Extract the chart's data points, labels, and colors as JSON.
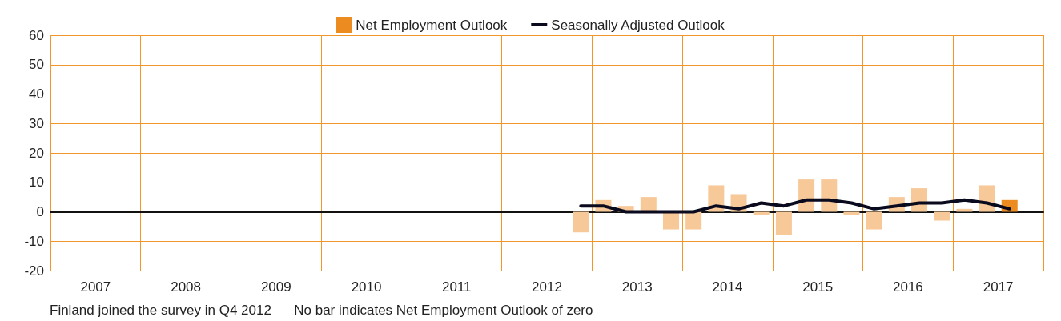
{
  "chart_data": {
    "type": "bar",
    "x": [
      2012.875,
      2013.125,
      2013.375,
      2013.625,
      2013.875,
      2014.125,
      2014.375,
      2014.625,
      2014.875,
      2015.125,
      2015.375,
      2015.625,
      2015.875,
      2016.125,
      2016.375,
      2016.625,
      2016.875,
      2017.125,
      2017.375,
      2017.625
    ],
    "series": [
      {
        "name": "Net Employment Outlook",
        "color": "#ec8b1f",
        "colors": [
          "#f7c999",
          "#f7c999",
          "#f7c999",
          "#f7c999",
          "#f7c999",
          "#f7c999",
          "#f7c999",
          "#f7c999",
          "#f7c999",
          "#f7c999",
          "#f7c999",
          "#f7c999",
          "#f7c999",
          "#f7c999",
          "#f7c999",
          "#f7c999",
          "#f7c999",
          "#f7c999",
          "#f7c999",
          "#ec8b1f"
        ],
        "values": [
          -7,
          4,
          2,
          5,
          -6,
          -6,
          9,
          6,
          -1,
          -8,
          11,
          11,
          -1,
          -6,
          5,
          8,
          -3,
          1,
          9,
          4
        ]
      },
      {
        "name": "Seasonally Adjusted Outlook",
        "type": "line",
        "color": "#0a0a1e",
        "values": [
          2,
          2,
          0,
          0,
          0,
          0,
          2,
          1,
          3,
          2,
          4,
          4,
          3,
          1,
          2,
          3,
          3,
          4,
          3,
          1
        ]
      }
    ],
    "xlim": [
      2007,
      2018
    ],
    "xticks": [
      {
        "value": 2007,
        "label": null
      },
      {
        "value": 2007.5,
        "label": "2007"
      },
      {
        "value": 2008,
        "label": null
      },
      {
        "value": 2008.5,
        "label": "2008"
      },
      {
        "value": 2009,
        "label": null
      },
      {
        "value": 2009.5,
        "label": "2009"
      },
      {
        "value": 2010,
        "label": null
      },
      {
        "value": 2010.5,
        "label": "2010"
      },
      {
        "value": 2011,
        "label": null
      },
      {
        "value": 2011.5,
        "label": "2011"
      },
      {
        "value": 2012,
        "label": null
      },
      {
        "value": 2012.5,
        "label": "2012"
      },
      {
        "value": 2013,
        "label": null
      },
      {
        "value": 2013.5,
        "label": "2013"
      },
      {
        "value": 2014,
        "label": null
      },
      {
        "value": 2014.5,
        "label": "2014"
      },
      {
        "value": 2015,
        "label": null
      },
      {
        "value": 2015.5,
        "label": "2015"
      },
      {
        "value": 2016,
        "label": null
      },
      {
        "value": 2016.5,
        "label": "2016"
      },
      {
        "value": 2017,
        "label": null
      },
      {
        "value": 2017.5,
        "label": "2017"
      },
      {
        "value": 2018,
        "label": null
      }
    ],
    "ylim": [
      -20,
      60
    ],
    "yticks": [
      -20,
      -10,
      0,
      10,
      20,
      30,
      40,
      50,
      60
    ],
    "grid": true,
    "legend": "top",
    "marker": "none",
    "line_style": "solid",
    "annotations": [
      "Finland joined the survey in Q4 2012",
      "No bar indicates Net Employment Outlook of zero"
    ]
  }
}
